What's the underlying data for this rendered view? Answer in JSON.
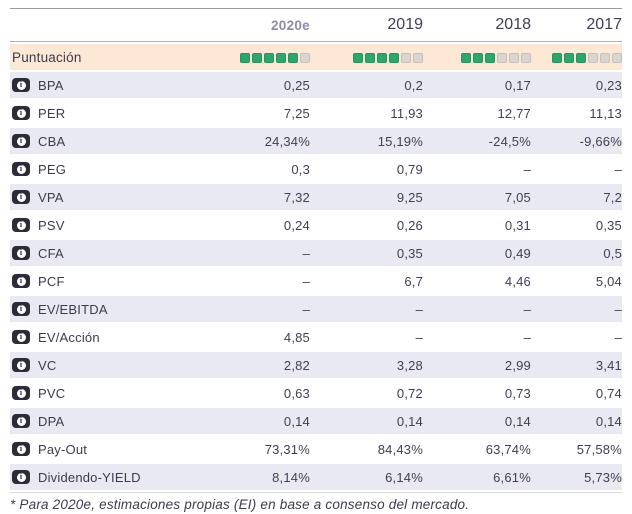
{
  "header": {
    "columns": [
      "2020e",
      "2019",
      "2018",
      "2017"
    ]
  },
  "score_row": {
    "label": "Puntuación",
    "max": 6,
    "scores": [
      5,
      4,
      3,
      3
    ]
  },
  "rows": [
    {
      "label": "BPA",
      "values": [
        "0,25",
        "0,2",
        "0,17",
        "0,23"
      ]
    },
    {
      "label": "PER",
      "values": [
        "7,25",
        "11,93",
        "12,77",
        "11,13"
      ]
    },
    {
      "label": "CBA",
      "values": [
        "24,34%",
        "15,19%",
        "-24,5%",
        "-9,66%"
      ]
    },
    {
      "label": "PEG",
      "values": [
        "0,3",
        "0,79",
        "–",
        "–"
      ]
    },
    {
      "label": "VPA",
      "values": [
        "7,32",
        "9,25",
        "7,05",
        "7,2"
      ]
    },
    {
      "label": "PSV",
      "values": [
        "0,24",
        "0,26",
        "0,31",
        "0,35"
      ]
    },
    {
      "label": "CFA",
      "values": [
        "–",
        "0,35",
        "0,49",
        "0,5"
      ]
    },
    {
      "label": "PCF",
      "values": [
        "–",
        "6,7",
        "4,46",
        "5,04"
      ]
    },
    {
      "label": "EV/EBITDA",
      "values": [
        "–",
        "–",
        "–",
        "–"
      ]
    },
    {
      "label": "EV/Acción",
      "values": [
        "4,85",
        "–",
        "–",
        "–"
      ]
    },
    {
      "label": "VC",
      "values": [
        "2,82",
        "3,28",
        "2,99",
        "3,41"
      ]
    },
    {
      "label": "PVC",
      "values": [
        "0,63",
        "0,72",
        "0,73",
        "0,74"
      ]
    },
    {
      "label": "DPA",
      "values": [
        "0,14",
        "0,14",
        "0,14",
        "0,14"
      ]
    },
    {
      "label": "Pay-Out",
      "values": [
        "73,31%",
        "84,43%",
        "63,74%",
        "57,58%"
      ]
    },
    {
      "label": "Dividendo-YIELD",
      "values": [
        "8,14%",
        "6,14%",
        "6,61%",
        "5,73%"
      ]
    }
  ],
  "icons": {
    "info": "i"
  },
  "footnote": "* Para 2020e, estimaciones propias (EI) en base a consenso del mercado.",
  "colors": {
    "score_filled": "#2ea56d",
    "score_empty": "#dbd5d1",
    "score_row_bg": "#fce8d4",
    "shaded_row_bg": "#e9e9f1",
    "header_text": "#8c8ca6",
    "body_text": "#3e3e52",
    "info_badge_bg": "#2c2c38"
  }
}
